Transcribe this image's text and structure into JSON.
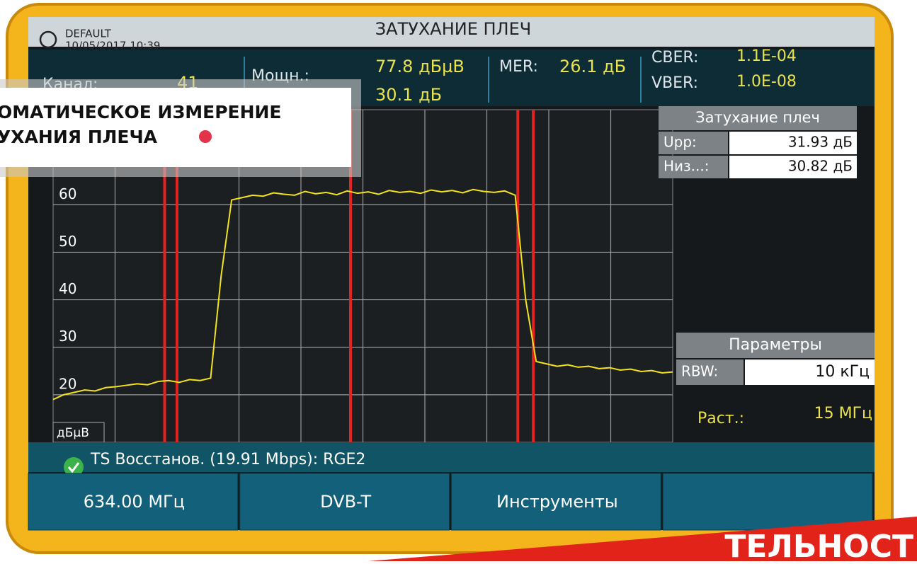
{
  "header": {
    "title": "ЗАТУХАНИЕ ПЛЕЧ",
    "profile": "DEFAULT",
    "datetime": "10/05/2017 10:39"
  },
  "status": {
    "channel_label": "Канал:",
    "channel": "41",
    "power_label": "Мощн.:",
    "power": "77.8 дБµВ",
    "cn": "30.1 дБ",
    "mer_label": "MER:",
    "mer": "26.1 дБ",
    "cber_label": "CBER:",
    "cber": "1.1E-04",
    "vber_label": "VBER:",
    "vber": "1.0E-08"
  },
  "overlay": {
    "line1": "ОМАТИЧЕСКОЕ ИЗМЕРЕНИЕ",
    "line2": "УХАНИЯ ПЛЕЧА"
  },
  "spectrum": {
    "unit": "дБµВ",
    "ylim": [
      10,
      80
    ],
    "yticks": [
      20,
      30,
      40,
      50,
      60
    ],
    "trace": [
      19,
      20,
      20.5,
      21,
      20.8,
      21.5,
      21.7,
      22,
      22.3,
      22.1,
      22.8,
      23,
      22.6,
      23.2,
      23,
      23.5,
      45,
      61,
      61.5,
      62,
      61.8,
      62.5,
      62.2,
      62,
      62.8,
      62.3,
      62.6,
      62.1,
      62.9,
      62.4,
      62.7,
      62.2,
      63,
      62.6,
      62.8,
      62.4,
      63.1,
      62.7,
      63,
      62.5,
      63.2,
      62.8,
      62.6,
      62.9,
      62,
      40,
      27,
      26.5,
      26,
      26.3,
      25.8,
      26,
      25.5,
      25.7,
      25.2,
      25.4,
      24.9,
      25.1,
      24.6,
      24.8
    ]
  },
  "shoulder_panel": {
    "title": "Затухание плеч",
    "upper_label": "Upp:",
    "upper": "31.93 дБ",
    "lower_label": "Низ...:",
    "lower": "30.82 дБ"
  },
  "params_panel": {
    "title": "Параметры",
    "rbw_label": "RBW:",
    "rbw": "10 кГц",
    "span_label": "Раст.:",
    "span": "15 МГц"
  },
  "ts_status": "TS Восстанов. (19.91 Mbps): RGE2",
  "softkeys": [
    "634.00 МГц",
    "DVB-T",
    "Инструменты"
  ],
  "banner": "ТЕЛЬНОСТ"
}
